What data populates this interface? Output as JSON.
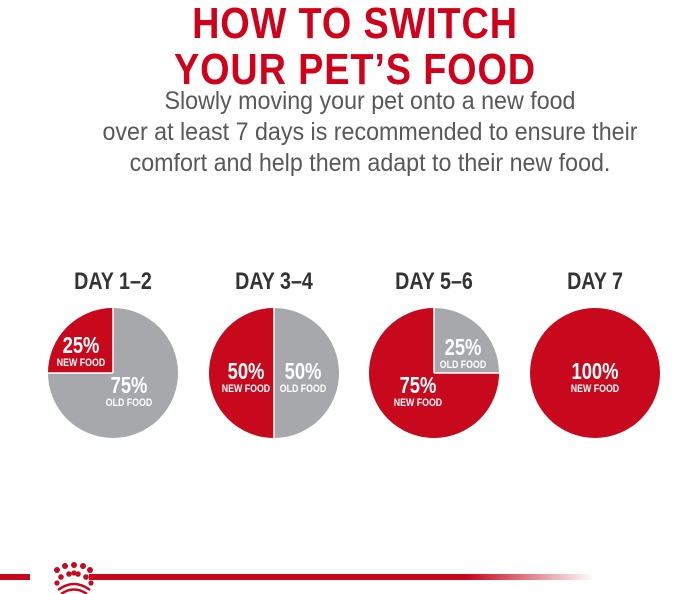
{
  "title": {
    "line1": "HOW TO SWITCH",
    "line2": "YOUR PET’S FOOD"
  },
  "description": [
    "Slowly moving your pet onto a new food",
    "over at least 7 days is recommended to ensure their",
    "comfort and help them adapt to their new food."
  ],
  "colors": {
    "new_food": "#c8081c",
    "old_food": "#a7a8ab",
    "title": "#d0021b"
  },
  "stages": [
    {
      "label": "DAY 1–2",
      "new_pct": "25%",
      "new_label": "NEW FOOD",
      "old_pct": "75%",
      "old_label": "OLD FOOD",
      "new_fraction": 0.25
    },
    {
      "label": "DAY 3–4",
      "new_pct": "50%",
      "new_label": "NEW FOOD",
      "old_pct": "50%",
      "old_label": "OLD FOOD",
      "new_fraction": 0.5
    },
    {
      "label": "DAY 5–6",
      "new_pct": "75%",
      "new_label": "NEW FOOD",
      "old_pct": "25%",
      "old_label": "OLD FOOD",
      "new_fraction": 0.75
    },
    {
      "label": "DAY 7",
      "new_pct": "100%",
      "new_label": "NEW FOOD",
      "new_fraction": 1.0
    }
  ],
  "footer": {
    "logo": "royal-canin-crown-logo"
  }
}
